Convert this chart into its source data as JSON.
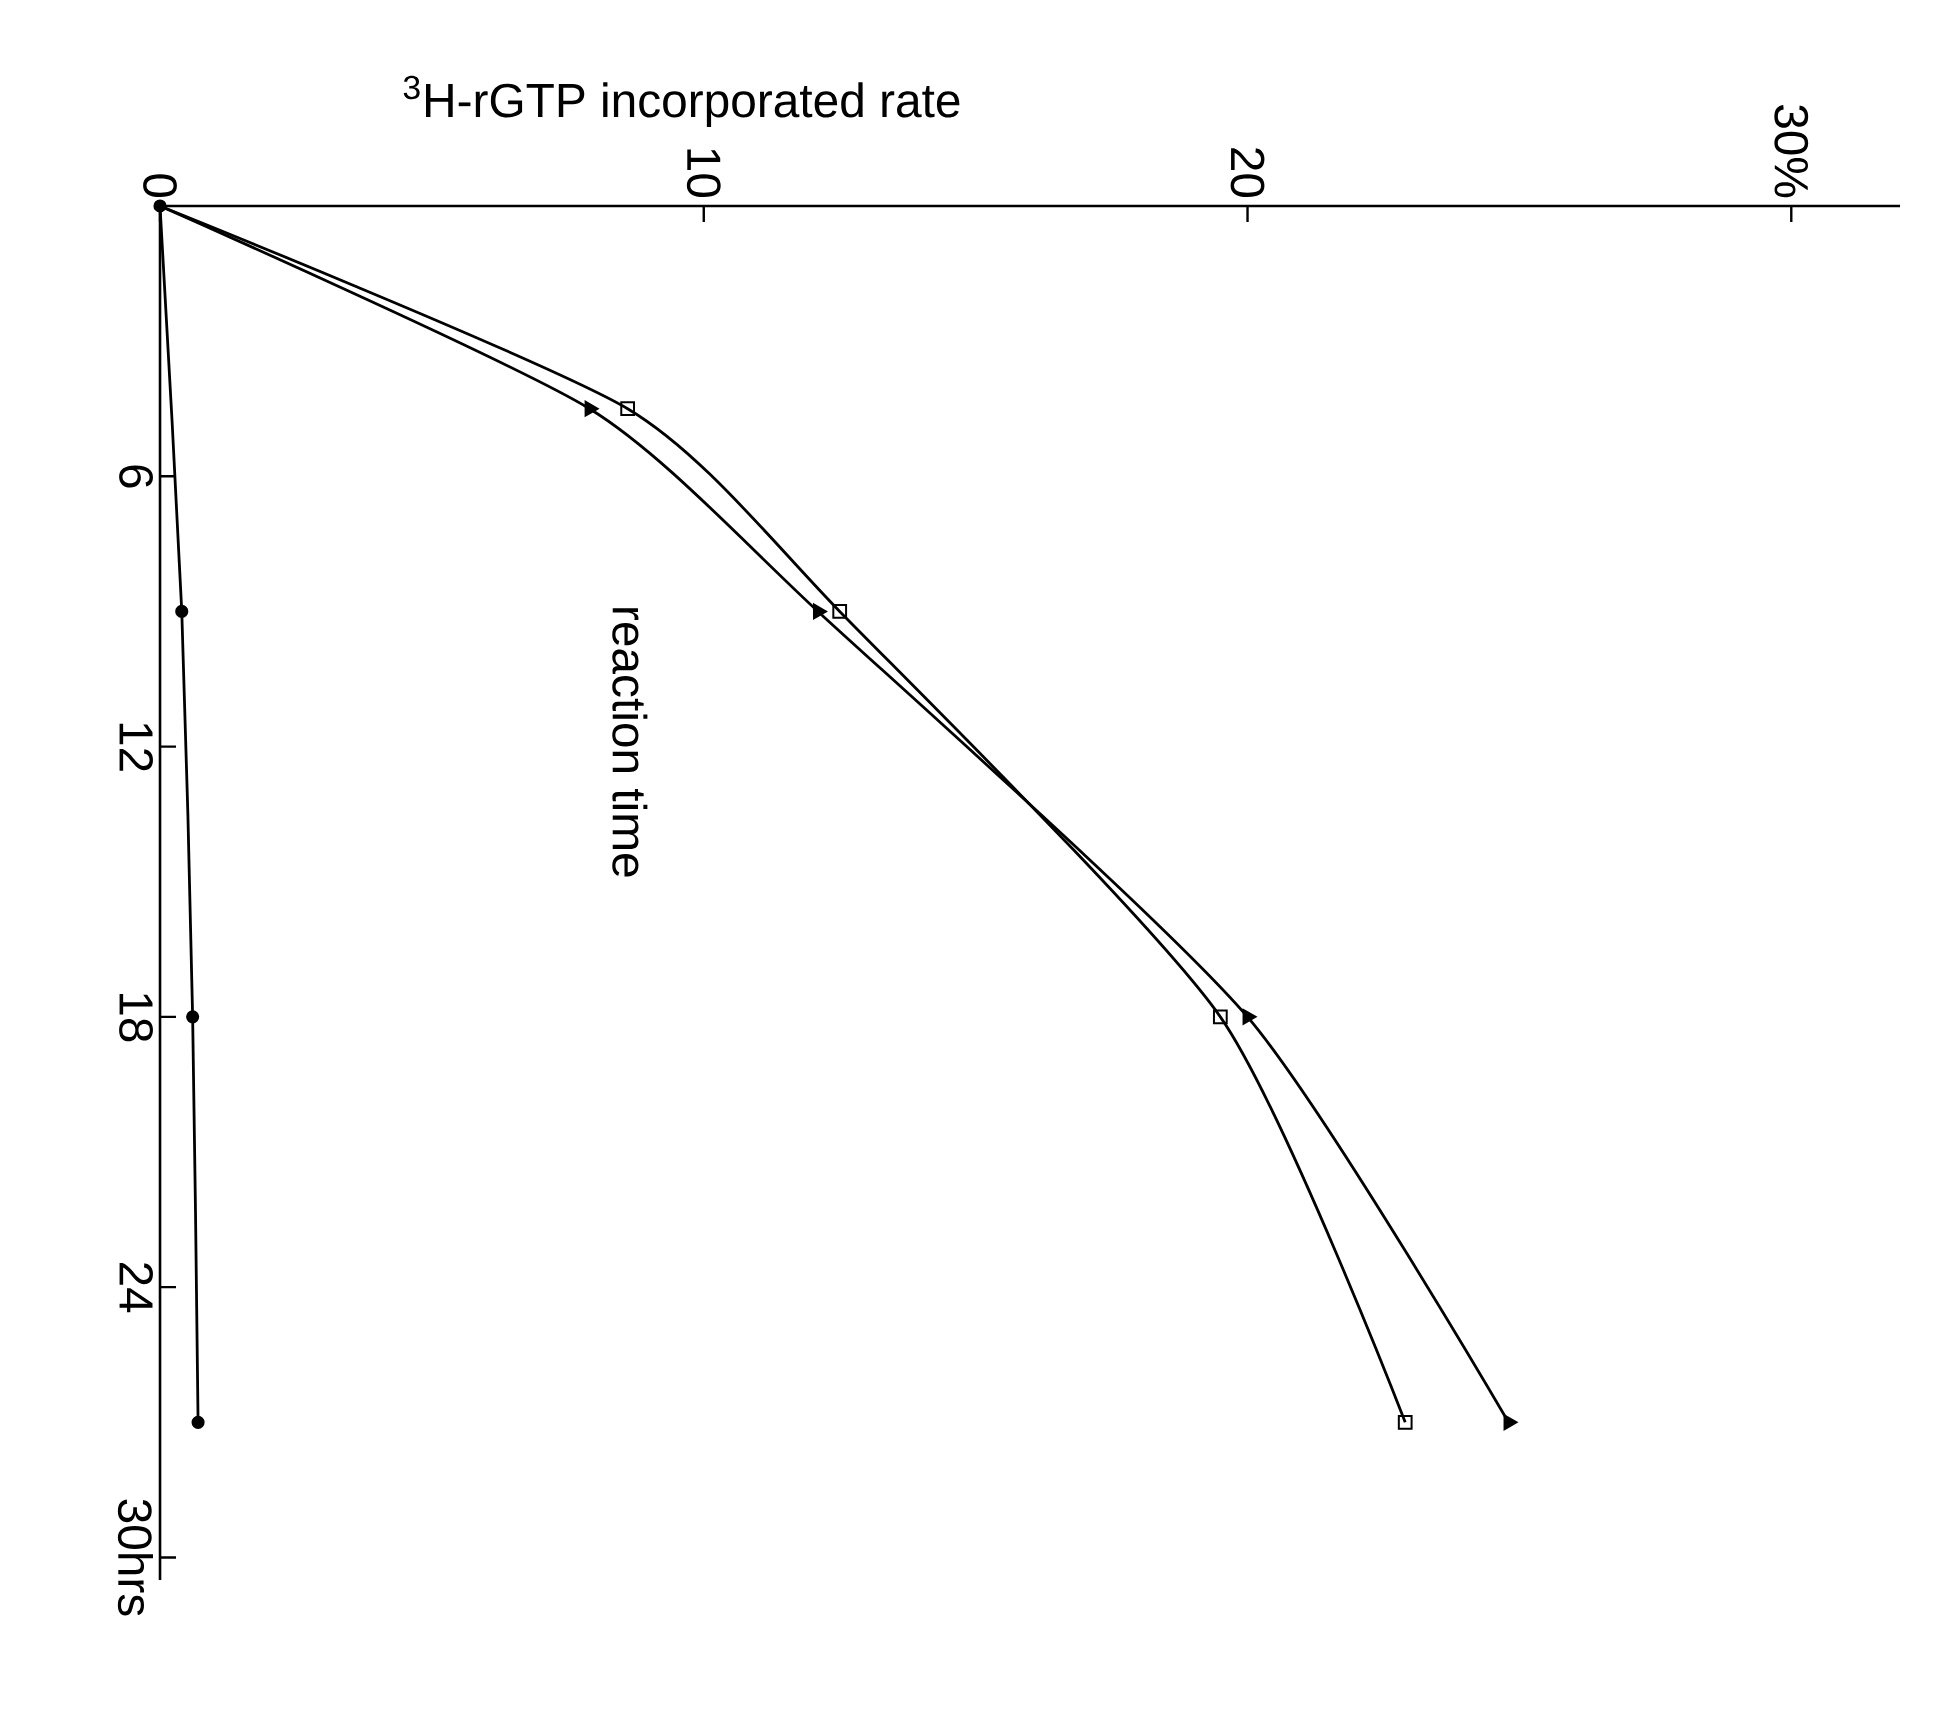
{
  "chart_data": {
    "type": "line",
    "xlabel": "$^{3}$H-rGTP incorporated rate",
    "ylabel": "reaction time",
    "series": [
      {
        "color": "#000000",
        "marker": "circle",
        "x": [
          0,
          0.4,
          0.6,
          0.7
        ],
        "values": [
          0,
          9,
          18,
          27
        ]
      },
      {
        "color": "#000000",
        "marker": "square",
        "x": [
          0,
          8.6,
          12.5,
          19.5,
          22.9
        ],
        "values": [
          0,
          4.5,
          9,
          18,
          27
        ]
      },
      {
        "color": "#000000",
        "marker": "triangle",
        "x": [
          0,
          7.9,
          12.1,
          20.0,
          24.8
        ],
        "values": [
          0,
          4.5,
          9,
          18,
          27
        ]
      }
    ],
    "xlim": [
      0,
      32
    ],
    "ylim": [
      30.5,
      0
    ],
    "xticks": [
      0,
      10,
      20,
      {
        "value": 30,
        "label": "30%"
      }
    ],
    "yticks": [
      6,
      12,
      18,
      24,
      {
        "value": 30,
        "label": "30hrs"
      }
    ]
  }
}
